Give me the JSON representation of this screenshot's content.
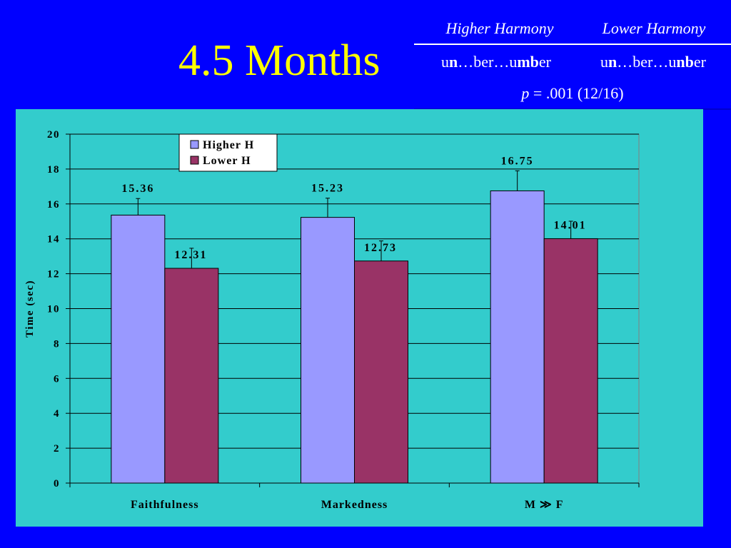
{
  "slide": {
    "title": "4.5 Months"
  },
  "conditions_table": {
    "header_higher": "Higher Harmony",
    "header_lower": "Lower Harmony",
    "higher_stimulus": {
      "a": "u",
      "b": "n",
      "c": "…ber…u",
      "d": "mb",
      "e": "er"
    },
    "lower_stimulus": {
      "a": "u",
      "b": "n",
      "c": "…ber…u",
      "d": "nb",
      "e": "er"
    },
    "p_symbol": "p",
    "p_rest": " = .001 (12/16)"
  },
  "colors": {
    "background": "#0000ff",
    "title": "#ffff00",
    "chart_panel": "#33cccc",
    "higher_h": "#9999ff",
    "lower_h": "#993366"
  },
  "chart_data": {
    "type": "bar",
    "categories": [
      "Faithfulness",
      "Markedness",
      "M ≫ F"
    ],
    "series": [
      {
        "name": "Higher H",
        "values": [
          15.36,
          15.23,
          16.75
        ],
        "errors": [
          0.95,
          1.1,
          1.15
        ],
        "labels": [
          "15.36",
          "15.23",
          "16.75"
        ]
      },
      {
        "name": "Lower H",
        "values": [
          12.31,
          12.73,
          14.01
        ],
        "errors": [
          1.15,
          1.15,
          1.0
        ],
        "labels": [
          "12.31",
          "12.73",
          "14.01"
        ]
      }
    ],
    "ylabel": "Time (sec)",
    "xlabel": "",
    "ylim": [
      0,
      20
    ],
    "yticks": [
      "0",
      "2",
      "4",
      "6",
      "8",
      "10",
      "12",
      "14",
      "16",
      "18",
      "20"
    ],
    "grid": true,
    "legend_position": "top-left"
  }
}
